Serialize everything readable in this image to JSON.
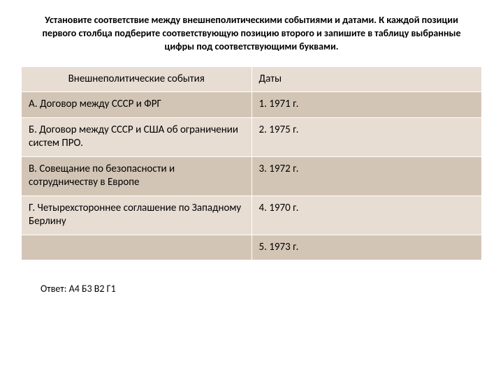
{
  "title": "Установите соответствие между внешнеполитическими событиями и датами. К каждой позиции первого столбца подберите соответствующую позицию второго и запишите в таблицу выбранные цифры под соответствующими буквами.",
  "table": {
    "header": {
      "left": "Внешнеполитические события",
      "right": "Даты"
    },
    "rows": [
      {
        "left": "А. Договор между СССР и ФРГ",
        "right": "1. 1971 г."
      },
      {
        "left": "Б. Договор между СССР и США об ограничении систем ПРО.",
        "right": "2. 1975 г."
      },
      {
        "left": "В. Совещание по безопасности и сотрудничеству в Европе",
        "right": "3. 1972 г."
      },
      {
        "left": "Г. Четырехстороннее соглашение по Западному Берлину",
        "right": "4. 1970 г."
      },
      {
        "left": "",
        "right": "5. 1973 г."
      }
    ],
    "styling": {
      "header_bg": "#e8ddd3",
      "odd_bg": "#d3c5b6",
      "even_bg": "#e8ddd3",
      "border_color": "#ffffff",
      "font_size": 15,
      "text_color": "#000000"
    }
  },
  "answer": "Ответ: А4 Б3 В2 Г1"
}
